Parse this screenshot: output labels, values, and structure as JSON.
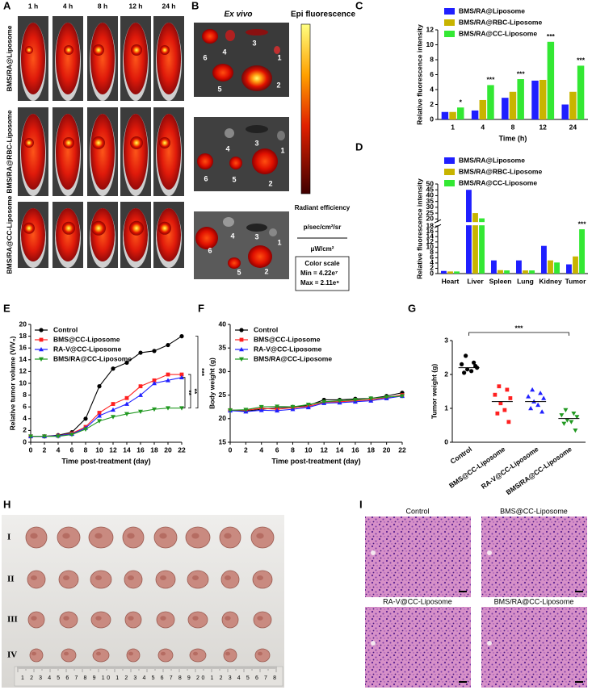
{
  "panel_a": {
    "label": "A",
    "times": [
      "1 h",
      "4 h",
      "8 h",
      "12 h",
      "24 h"
    ],
    "groups": [
      "BMS/RA@Liposome",
      "BMS/RA@RBC-Liposome",
      "BMS/RA@CC-Liposome"
    ]
  },
  "panel_b": {
    "label": "B",
    "title_left": "Ex vivo",
    "title_right": "Epi fluorescence",
    "organs": [
      [
        "6",
        "4",
        "3",
        "1",
        "5",
        "2"
      ],
      [
        "4",
        "3",
        "1",
        "6",
        "5",
        "2"
      ],
      [
        "4",
        "3",
        "1",
        "6",
        "5",
        "2"
      ]
    ],
    "scale_title": "Radiant efficiency",
    "unit_1": "p/sec/cm²/sr",
    "unit_2": "μW/cm²",
    "scale_box": [
      "Color scale",
      "Min = 4.22e⁷",
      "Max = 2.11e⁹"
    ]
  },
  "panel_h": {
    "label": "H",
    "rows": [
      "I",
      "II",
      "III",
      "IV"
    ],
    "ruler": "1 2 3 4 5 6 7 8 9 10 1 2 3 4 5 6 7 8 9 20 1 2 3 4 5 6 7 8"
  },
  "panel_i": {
    "label": "I",
    "groups": [
      "Control",
      "BMS@CC-Liposome",
      "RA-V@CC-Liposome",
      "BMS/RA@CC-Liposome"
    ]
  },
  "chart_data": [
    {
      "panel": "C",
      "type": "bar",
      "categories": [
        "1",
        "4",
        "8",
        "12",
        "24"
      ],
      "xlabel": "Time (h)",
      "ylabel": "Relative fluorescence intensity",
      "ylim": [
        0,
        12
      ],
      "yticks": [
        0,
        2,
        4,
        6,
        8,
        10,
        12
      ],
      "legend": "upper left",
      "series": [
        {
          "name": "BMS/RA@Liposome",
          "color": "#1f1fff",
          "values": [
            1.0,
            1.2,
            2.9,
            5.2,
            2.0
          ]
        },
        {
          "name": "BMS/RA@RBC-Liposome",
          "color": "#c8b400",
          "values": [
            1.0,
            2.6,
            3.7,
            5.3,
            3.7
          ]
        },
        {
          "name": "BMS/RA@CC-Liposome",
          "color": "#33e833",
          "values": [
            1.6,
            4.6,
            5.4,
            10.4,
            7.2
          ]
        }
      ],
      "significance": [
        "*",
        "***",
        "***",
        "***",
        "***"
      ]
    },
    {
      "panel": "D",
      "type": "bar",
      "categories": [
        "Heart",
        "Liver",
        "Spleen",
        "Lung",
        "Kidney",
        "Tumor"
      ],
      "ylabel": "Relative fluorescence intensity",
      "ylim": [
        0,
        50
      ],
      "ysegments": [
        [
          0,
          18
        ],
        [
          18,
          50
        ]
      ],
      "yticks": [
        0,
        2,
        4,
        6,
        8,
        10,
        12,
        14,
        16,
        18,
        20,
        25,
        30,
        35,
        40,
        45,
        50
      ],
      "legend": "upper left",
      "series": [
        {
          "name": "BMS/RA@Liposome",
          "color": "#1f1fff",
          "values": [
            1.0,
            45,
            5.0,
            5.0,
            10.5,
            3.5
          ]
        },
        {
          "name": "BMS/RA@RBC-Liposome",
          "color": "#c8b400",
          "values": [
            0.8,
            25,
            1.3,
            1.2,
            5.0,
            6.5
          ]
        },
        {
          "name": "BMS/RA@CC-Liposome",
          "color": "#33e833",
          "values": [
            0.8,
            20.5,
            1.2,
            1.2,
            4.2,
            16.8
          ]
        }
      ],
      "significance": [
        null,
        null,
        null,
        null,
        null,
        "***"
      ]
    },
    {
      "panel": "E",
      "type": "line",
      "x": [
        0,
        2,
        4,
        6,
        8,
        10,
        12,
        14,
        16,
        18,
        20,
        22
      ],
      "xlim": [
        0,
        22
      ],
      "xticks": [
        0,
        2,
        4,
        6,
        8,
        10,
        12,
        14,
        16,
        18,
        20,
        22
      ],
      "xlabel": "Time post-treatment (day)",
      "ylabel": "Relative tumor volume (V/V₀)",
      "ylim": [
        0,
        20
      ],
      "yticks": [
        0,
        2,
        4,
        6,
        8,
        10,
        12,
        14,
        16,
        18,
        20
      ],
      "legend": "upper left",
      "series": [
        {
          "name": "Control",
          "color": "#000000",
          "marker": "circle",
          "values": [
            1,
            1,
            1.2,
            1.7,
            4,
            9.5,
            12.5,
            13.5,
            15.2,
            15.5,
            16.5,
            18
          ]
        },
        {
          "name": "BMS@CC-Liposome",
          "color": "#ff2020",
          "marker": "square",
          "values": [
            1,
            1,
            1.1,
            1.5,
            2.6,
            5,
            6.5,
            7.5,
            9.5,
            10.5,
            11.5,
            11.5
          ]
        },
        {
          "name": "RA-V@CC-Liposome",
          "color": "#2020ff",
          "marker": "triangle",
          "values": [
            1,
            1,
            1.1,
            1.4,
            2.4,
            4.5,
            5.5,
            6.5,
            8,
            10,
            10.5,
            11
          ]
        },
        {
          "name": "BMS/RA@CC-Liposome",
          "color": "#229922",
          "marker": "triangle-down",
          "values": [
            1,
            1,
            1,
            1.3,
            2.2,
            3.6,
            4.3,
            4.8,
            5.2,
            5.6,
            5.8,
            5.8
          ]
        }
      ],
      "significance": [
        "***",
        "**",
        "**"
      ]
    },
    {
      "panel": "F",
      "type": "line",
      "x": [
        0,
        2,
        4,
        6,
        8,
        10,
        12,
        14,
        16,
        18,
        20,
        22
      ],
      "xlim": [
        0,
        22
      ],
      "xticks": [
        0,
        2,
        4,
        6,
        8,
        10,
        12,
        14,
        16,
        18,
        20,
        22
      ],
      "xlabel": "Time post-treatment (day)",
      "ylabel": "Body weight (g)",
      "ylim": [
        15,
        40
      ],
      "yticks": [
        15,
        20,
        25,
        30,
        35,
        40
      ],
      "legend": "upper left",
      "series": [
        {
          "name": "Control",
          "color": "#000000",
          "marker": "circle",
          "values": [
            21.8,
            21.6,
            22.0,
            22.3,
            22.5,
            22.8,
            24.0,
            24.0,
            24.2,
            24.3,
            24.8,
            25.5
          ]
        },
        {
          "name": "BMS@CC-Liposome",
          "color": "#ff2020",
          "marker": "square",
          "values": [
            21.8,
            21.8,
            22.2,
            22.0,
            22.3,
            22.6,
            23.5,
            23.6,
            23.8,
            24.0,
            24.5,
            25.0
          ]
        },
        {
          "name": "RA-V@CC-Liposome",
          "color": "#2020ff",
          "marker": "triangle",
          "values": [
            21.7,
            21.5,
            21.8,
            21.7,
            22.0,
            22.4,
            23.3,
            23.4,
            23.6,
            23.8,
            24.3,
            24.8
          ]
        },
        {
          "name": "BMS/RA@CC-Liposome",
          "color": "#229922",
          "marker": "triangle-down",
          "values": [
            21.8,
            21.9,
            22.5,
            22.6,
            22.5,
            23.0,
            23.6,
            23.8,
            24.0,
            24.3,
            24.6,
            24.8
          ]
        }
      ]
    },
    {
      "panel": "G",
      "type": "scatter",
      "categories": [
        "Control",
        "BMS@CC-Liposome",
        "RA-V@CC-Liposome",
        "BMS/RA@CC-Liposome"
      ],
      "ylabel": "Tumor weight (g)",
      "ylim": [
        0,
        3
      ],
      "yticks": [
        0,
        1,
        2,
        3
      ],
      "groups": [
        {
          "color": "#000000",
          "marker": "circle",
          "values": [
            2.55,
            2.35,
            2.3,
            2.2,
            2.15,
            2.1,
            2.05,
            2.25
          ],
          "mean": 2.2
        },
        {
          "color": "#ff2020",
          "marker": "square",
          "values": [
            1.65,
            1.55,
            1.4,
            1.3,
            1.15,
            0.95,
            0.85,
            0.6
          ],
          "mean": 1.2
        },
        {
          "color": "#2020ff",
          "marker": "triangle",
          "values": [
            1.55,
            1.45,
            1.35,
            1.3,
            1.2,
            1.1,
            1.0,
            0.9
          ],
          "mean": 1.2
        },
        {
          "color": "#229922",
          "marker": "triangle-down",
          "values": [
            0.95,
            0.85,
            0.8,
            0.75,
            0.65,
            0.6,
            0.55,
            0.35
          ],
          "mean": 0.7
        }
      ],
      "significance": "***"
    }
  ]
}
